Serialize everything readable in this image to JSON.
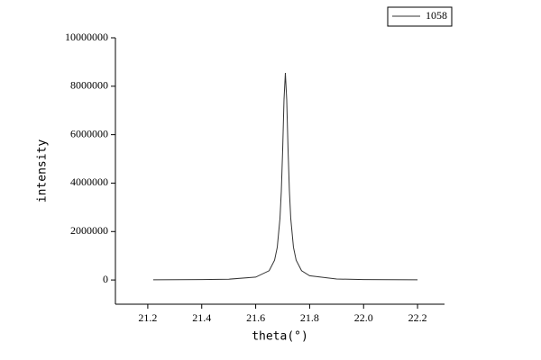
{
  "chart_data": {
    "type": "line",
    "x_label": "theta(°)",
    "y_label": "intensity",
    "x": [
      21.22,
      21.4,
      21.5,
      21.6,
      21.65,
      21.67,
      21.68,
      21.69,
      21.695,
      21.7,
      21.705,
      21.71,
      21.715,
      21.72,
      21.725,
      21.73,
      21.74,
      21.75,
      21.77,
      21.8,
      21.9,
      22.0,
      22.2
    ],
    "series": [
      {
        "name": "1058",
        "color": "#333333",
        "values": [
          6000,
          15000,
          32600,
          117800,
          383000,
          817000,
          1352000,
          2540000,
          3667000,
          5372000,
          7448000,
          8550000,
          7448000,
          5372000,
          3667000,
          2540000,
          1352000,
          817000,
          383000,
          174700,
          39800,
          17150,
          6000
        ]
      }
    ],
    "xlim": [
      21.08,
      22.3
    ],
    "xticks": [
      21.2,
      21.4,
      21.6,
      21.8,
      {
        "value": 22,
        "label": "22.0"
      },
      22.2
    ],
    "ylim": [
      -1000000,
      10000000
    ],
    "yticks": [
      0,
      2000000,
      4000000,
      6000000,
      8000000,
      10000000
    ],
    "legend": "top-right"
  }
}
